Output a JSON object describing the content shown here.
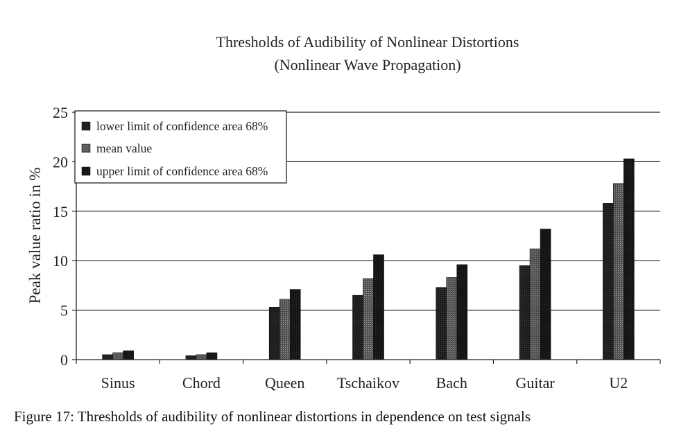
{
  "chart_data": {
    "type": "bar",
    "title": "Thresholds of Audibility of Nonlinear Distortions",
    "subtitle": "(Nonlinear Wave Propagation)",
    "ylabel": "Peak value ratio in %",
    "xlabel": "",
    "ylim": [
      0,
      25
    ],
    "yticks": [
      0,
      5,
      10,
      15,
      20,
      25
    ],
    "grid": true,
    "legend_position": "top-left",
    "categories": [
      "Sinus",
      "Chord",
      "Queen",
      "Tschaikov",
      "Bach",
      "Guitar",
      "U2"
    ],
    "series": [
      {
        "name": "lower limit of confidence area 68%",
        "values": [
          0.5,
          0.4,
          5.3,
          6.5,
          7.3,
          9.5,
          15.8
        ],
        "color": "#1a1a1a"
      },
      {
        "name": "mean value",
        "values": [
          0.7,
          0.5,
          6.1,
          8.2,
          8.3,
          11.2,
          17.8
        ],
        "color": "#666666"
      },
      {
        "name": "upper limit of confidence area  68%",
        "values": [
          0.9,
          0.7,
          7.1,
          10.6,
          9.6,
          13.2,
          20.3
        ],
        "color": "#141414"
      }
    ]
  },
  "caption": "Figure 17: Thresholds of audibility of nonlinear distortions in dependence on test signals"
}
